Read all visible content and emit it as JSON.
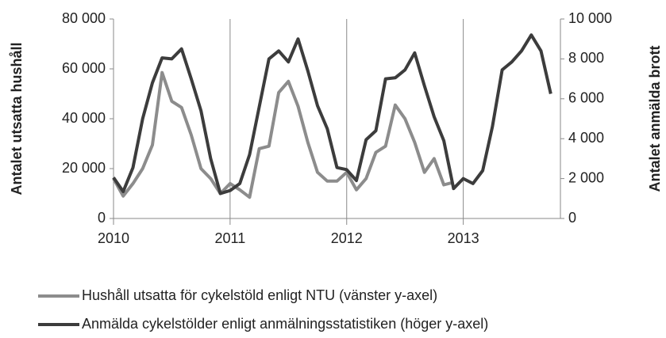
{
  "chart_data": {
    "type": "line",
    "y_label": "Antalet utsatta hushåll",
    "y2_label": "Antalet anmälda brott",
    "xlim": [
      2010,
      2013.8333
    ],
    "xticks": [
      2010,
      2011,
      2012,
      2013
    ],
    "ylim": [
      0,
      80000
    ],
    "yticks": [
      0,
      {
        "value": 20000,
        "label": "20 000"
      },
      {
        "value": 40000,
        "label": "40 000"
      },
      {
        "value": 60000,
        "label": "60 000"
      },
      {
        "value": 80000,
        "label": "80 000"
      }
    ],
    "y2lim": [
      0,
      10000
    ],
    "y2ticks": [
      0,
      {
        "value": 2000,
        "label": "2 000"
      },
      {
        "value": 4000,
        "label": "4 000"
      },
      {
        "value": 6000,
        "label": "6 000"
      },
      {
        "value": 8000,
        "label": "8 000"
      },
      {
        "value": 10000,
        "label": "10 000"
      }
    ],
    "grid": true,
    "legend": "bottom",
    "series": [
      {
        "name": "Hushåll utsatta för cykelstöld enligt NTU (vänster y-axel)",
        "color": "#8c8c8c",
        "axis": "y",
        "x": [
          2010,
          2010.0833,
          2010.1667,
          2010.25,
          2010.3333,
          2010.4167,
          2010.5,
          2010.5833,
          2010.6667,
          2010.75,
          2010.8333,
          2010.9167,
          2011,
          2011.0833,
          2011.1667,
          2011.25,
          2011.3333,
          2011.4167,
          2011.5,
          2011.5833,
          2011.6667,
          2011.75,
          2011.8333,
          2011.9167,
          2012,
          2012.0833,
          2012.1667,
          2012.25,
          2012.3333,
          2012.4167,
          2012.5,
          2012.5833,
          2012.6667,
          2012.75,
          2012.8333,
          2012.9167
        ],
        "values": [
          16000,
          9000,
          14000,
          20000,
          29500,
          58500,
          47000,
          44500,
          33500,
          20000,
          16000,
          10000,
          14000,
          11500,
          8500,
          28000,
          29000,
          50500,
          55000,
          45000,
          30500,
          18500,
          15000,
          15000,
          18500,
          11500,
          16000,
          26500,
          29000,
          45500,
          40000,
          30500,
          18500,
          24000,
          13500,
          14500
        ]
      },
      {
        "name": "Anmälda cykelstölder enligt anmälningsstatistiken (höger y-axel)",
        "color": "#3c3c3c",
        "axis": "y2",
        "x": [
          2010,
          2010.0833,
          2010.1667,
          2010.25,
          2010.3333,
          2010.4167,
          2010.5,
          2010.5833,
          2010.6667,
          2010.75,
          2010.8333,
          2010.9167,
          2011,
          2011.0833,
          2011.1667,
          2011.25,
          2011.3333,
          2011.4167,
          2011.5,
          2011.5833,
          2011.6667,
          2011.75,
          2011.8333,
          2011.9167,
          2012,
          2012.0833,
          2012.1667,
          2012.25,
          2012.3333,
          2012.4167,
          2012.5,
          2012.5833,
          2012.6667,
          2012.75,
          2012.8333,
          2012.9167,
          2013,
          2013.0833,
          2013.1667,
          2013.25,
          2013.3333,
          2013.4167,
          2013.5,
          2013.5833,
          2013.6667,
          2013.75
        ],
        "values": [
          2050,
          1350,
          2550,
          5000,
          6800,
          8050,
          8000,
          8500,
          7000,
          5400,
          3000,
          1250,
          1400,
          1750,
          3200,
          5600,
          8000,
          8400,
          7850,
          9000,
          7400,
          5650,
          4500,
          2550,
          2450,
          1900,
          3950,
          4400,
          7000,
          7050,
          7450,
          8300,
          6650,
          5100,
          3900,
          1500,
          2000,
          1750,
          2400,
          4600,
          7450,
          7850,
          8400,
          9200,
          8400,
          6250
        ]
      }
    ]
  }
}
